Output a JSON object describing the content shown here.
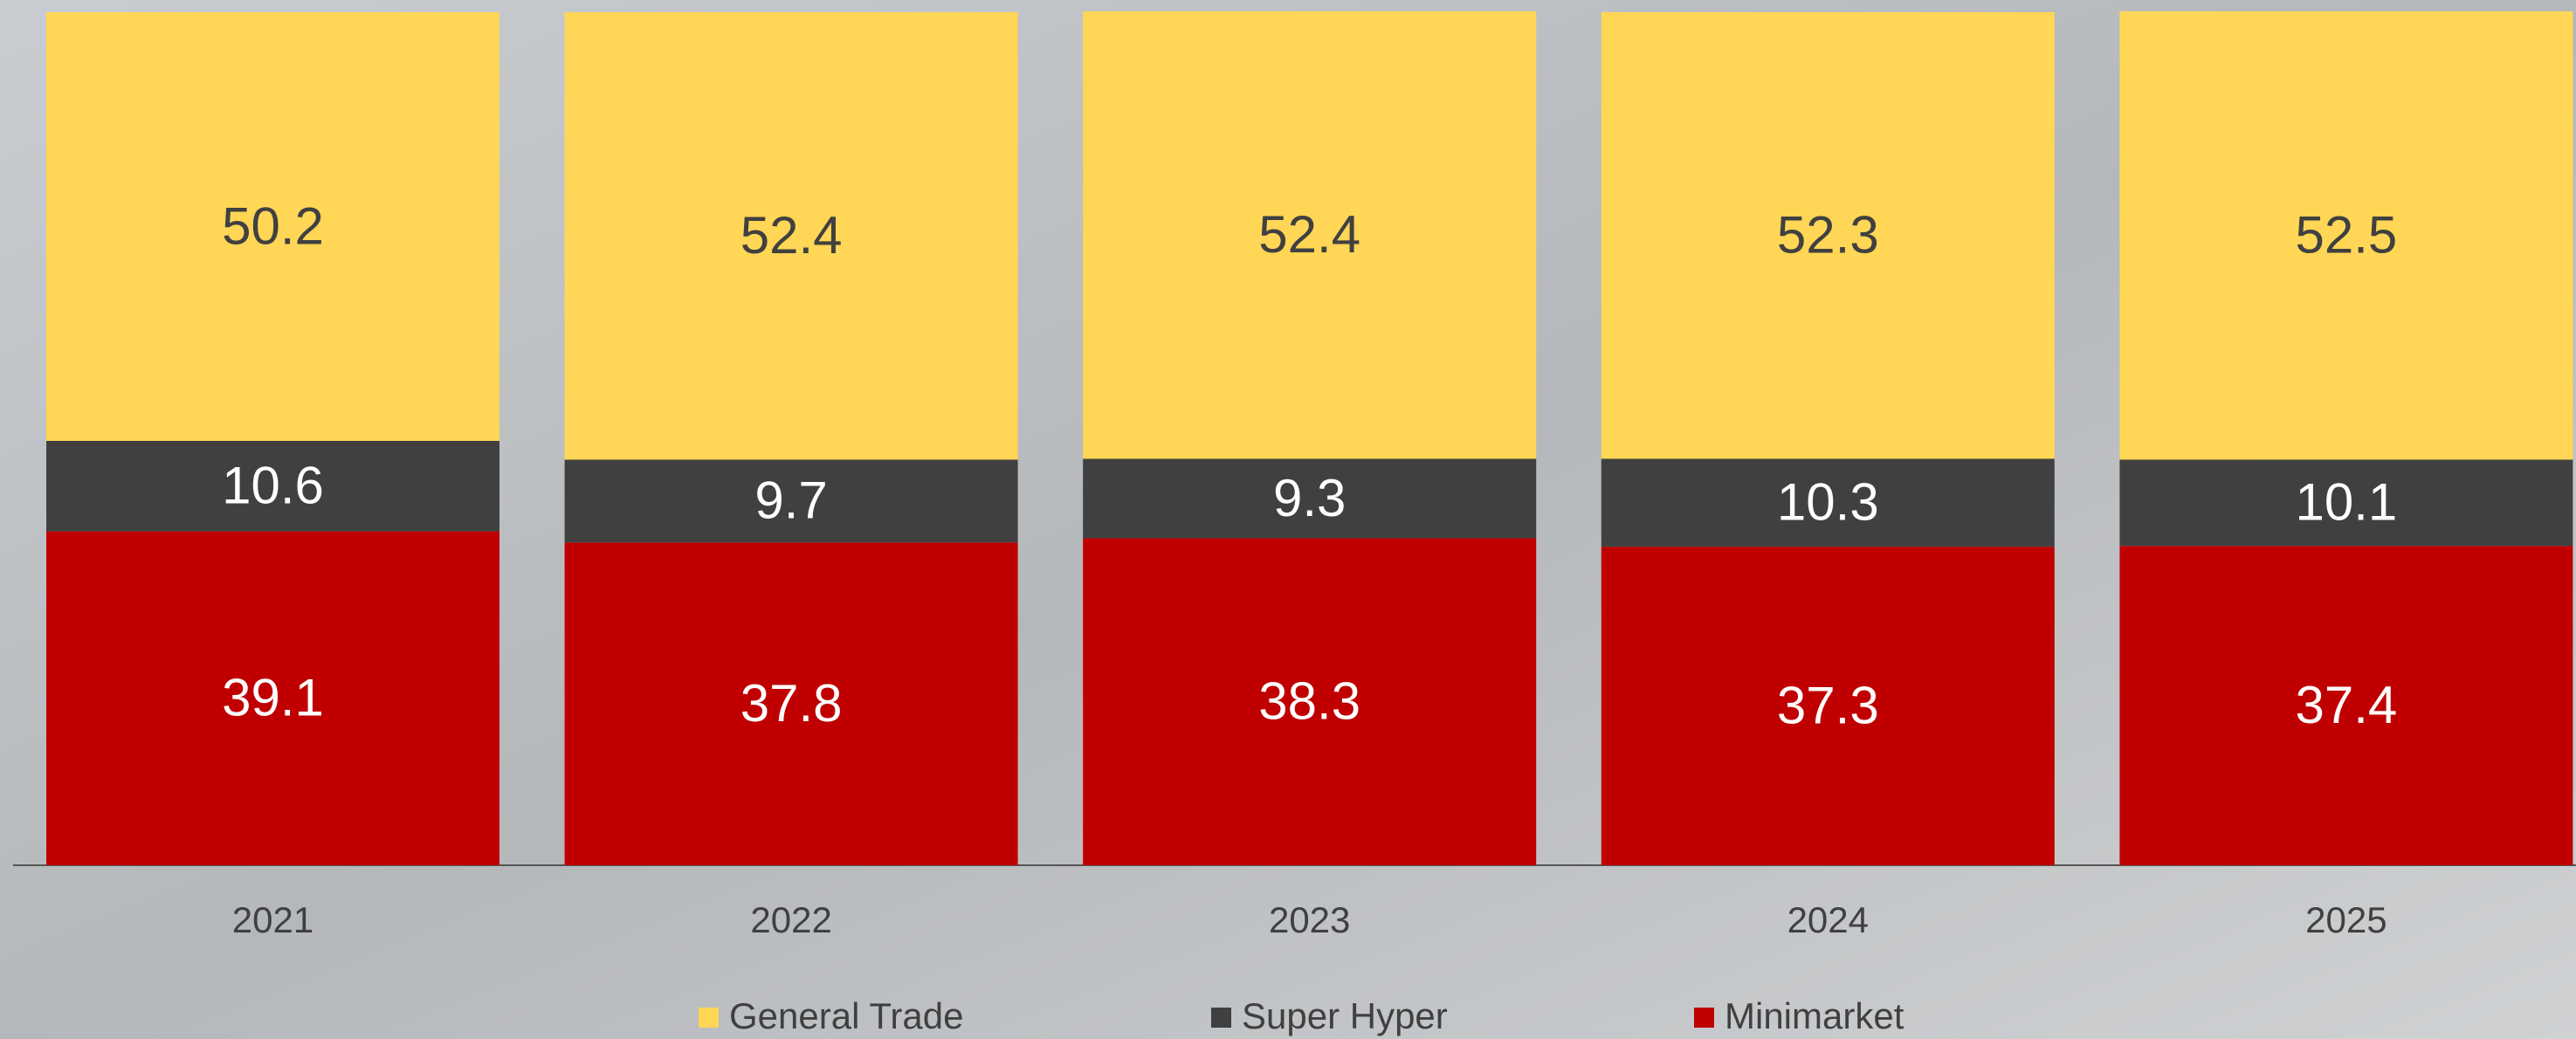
{
  "chart_data": {
    "type": "stacked_bar",
    "categories": [
      "2021",
      "2022",
      "2023",
      "2024",
      "2025"
    ],
    "series": [
      {
        "name": "General Trade",
        "color": "#FFD655",
        "values": [
          50.2,
          52.4,
          52.4,
          52.3,
          52.5
        ]
      },
      {
        "name": "Super Hyper",
        "color": "#404040",
        "values": [
          10.6,
          9.7,
          9.3,
          10.3,
          10.1
        ]
      },
      {
        "name": "Minimarket",
        "color": "#C00000",
        "values": [
          39.1,
          37.8,
          38.3,
          37.3,
          37.4
        ]
      }
    ],
    "ylim": [
      0,
      100
    ]
  }
}
